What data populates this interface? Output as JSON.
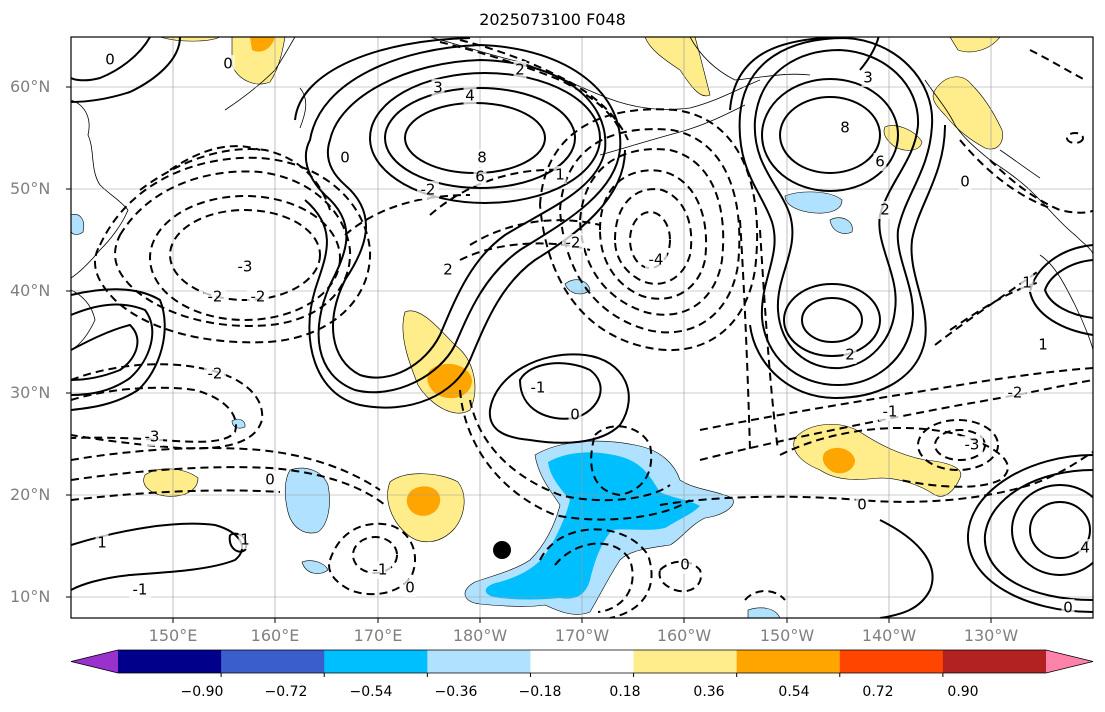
{
  "title": "2025073100 F048",
  "lon_labels": [
    "150°E",
    "160°E",
    "170°E",
    "180°W",
    "170°W",
    "160°W",
    "150°W",
    "140°W",
    "130°W"
  ],
  "lat_labels": [
    "60°N",
    "50°N",
    "40°N",
    "30°N",
    "20°N",
    "10°N"
  ],
  "colorbar": {
    "colors": [
      "#9932cc",
      "#00008b",
      "#3a5fcd",
      "#00bfff",
      "#b0e2ff",
      "#ffffff",
      "#ffec8b",
      "#ffa500",
      "#ff4500",
      "#b22222",
      "#ff82ab"
    ],
    "tick_labels": [
      "−0.90",
      "−0.72",
      "−0.54",
      "−0.36",
      "−0.18",
      "0.18",
      "0.36",
      "0.54",
      "0.72",
      "0.90"
    ]
  },
  "contour_labels": [
    "0",
    "0",
    "0",
    "0",
    "0",
    "0",
    "0",
    "0",
    "0",
    "0",
    "1",
    "1",
    "1",
    "1",
    "1",
    "-1",
    "-1",
    "-1",
    "-1",
    "2",
    "2",
    "2",
    "2",
    "-2",
    "-2",
    "-2",
    "-2",
    "-2",
    "-2",
    "3",
    "3",
    "-3",
    "-3",
    "-3",
    "4",
    "4",
    "-4",
    "6",
    "6",
    "8",
    "8"
  ]
}
